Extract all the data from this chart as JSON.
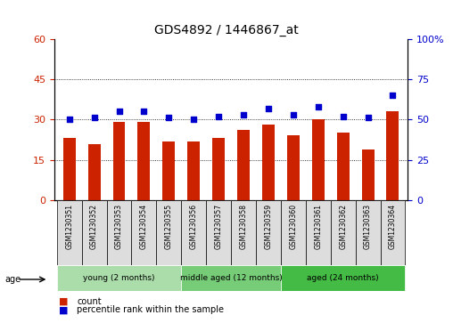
{
  "title": "GDS4892 / 1446867_at",
  "samples": [
    "GSM1230351",
    "GSM1230352",
    "GSM1230353",
    "GSM1230354",
    "GSM1230355",
    "GSM1230356",
    "GSM1230357",
    "GSM1230358",
    "GSM1230359",
    "GSM1230360",
    "GSM1230361",
    "GSM1230362",
    "GSM1230363",
    "GSM1230364"
  ],
  "counts": [
    23,
    21,
    29,
    29,
    22,
    22,
    23,
    26,
    28,
    24,
    30,
    25,
    19,
    33
  ],
  "percentiles": [
    50,
    51,
    55,
    55,
    51,
    50,
    52,
    53,
    57,
    53,
    58,
    52,
    51,
    65
  ],
  "bar_color": "#cc2200",
  "dot_color": "#0000cc",
  "ylim_left": [
    0,
    60
  ],
  "ylim_right": [
    0,
    100
  ],
  "yticks_left": [
    0,
    15,
    30,
    45,
    60
  ],
  "yticks_right": [
    0,
    25,
    50,
    75,
    100
  ],
  "groups": [
    {
      "label": "young (2 months)",
      "start": 0,
      "end": 5,
      "color": "#aaddaa"
    },
    {
      "label": "middle aged (12 months)",
      "start": 5,
      "end": 9,
      "color": "#77cc77"
    },
    {
      "label": "aged (24 months)",
      "start": 9,
      "end": 14,
      "color": "#44bb44"
    }
  ],
  "age_label": "age",
  "legend_count_label": "count",
  "legend_percentile_label": "percentile rank within the sample",
  "grid_color": "#000000",
  "plot_bg": "#ffffff",
  "tick_label_color_left": "#cc2200",
  "tick_label_color_right": "#0000cc",
  "bar_width": 0.5
}
